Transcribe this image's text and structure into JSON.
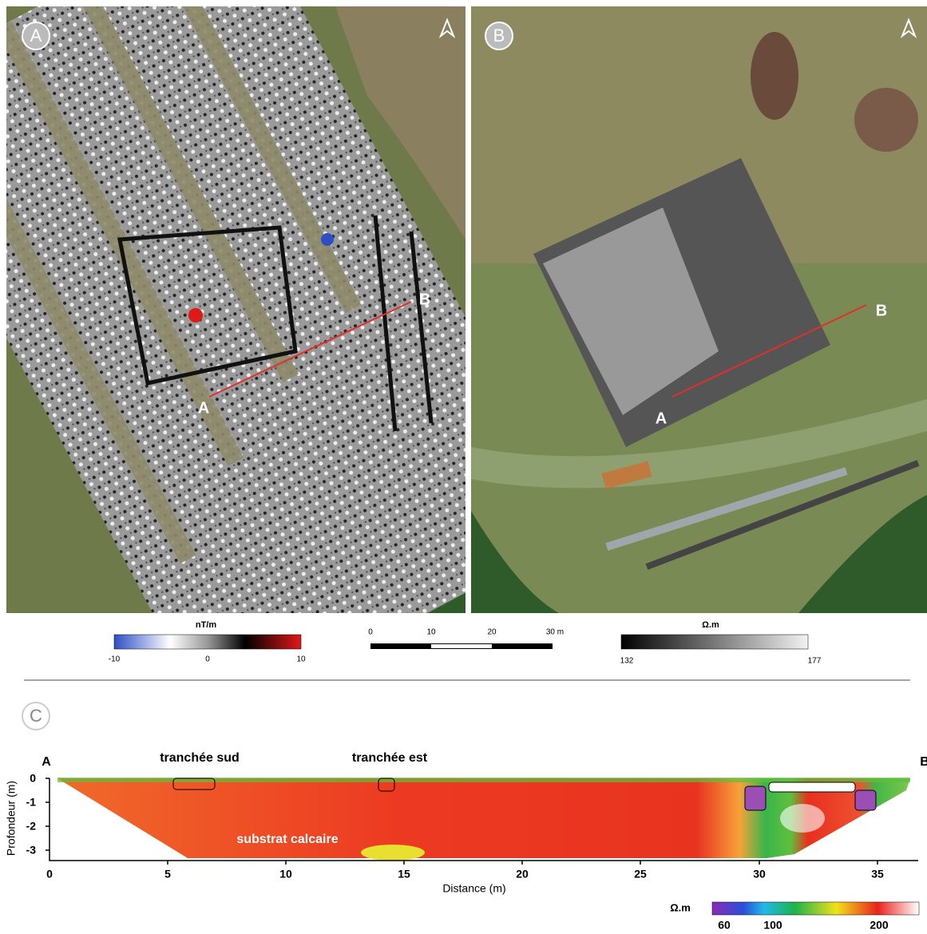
{
  "panel_a": {
    "label": "A",
    "point_a": "A",
    "point_b": "B",
    "colorbar": {
      "unit": "nT/m",
      "ticks": [
        "-10",
        "0",
        "10"
      ]
    }
  },
  "scale_bar": {
    "ticks": [
      "0",
      "10",
      "20",
      "30 m"
    ]
  },
  "panel_b": {
    "label": "B",
    "point_a": "A",
    "point_b": "B",
    "colorbar": {
      "unit": "Ω.m",
      "ticks": [
        "132",
        "177"
      ]
    }
  },
  "panel_c": {
    "label": "C",
    "start": "A",
    "end": "B",
    "annotations": [
      "tranchée sud",
      "tranchée est",
      "substrat calcaire"
    ],
    "y_label": "Profondeur (m)",
    "y_ticks": [
      "0",
      "-1",
      "-2",
      "-3"
    ],
    "x_label": "Distance (m)",
    "x_ticks": [
      "0",
      "5",
      "10",
      "15",
      "20",
      "25",
      "30",
      "35"
    ],
    "colorbar": {
      "unit": "Ω.m",
      "ticks": [
        "60",
        "100",
        "200"
      ]
    }
  }
}
